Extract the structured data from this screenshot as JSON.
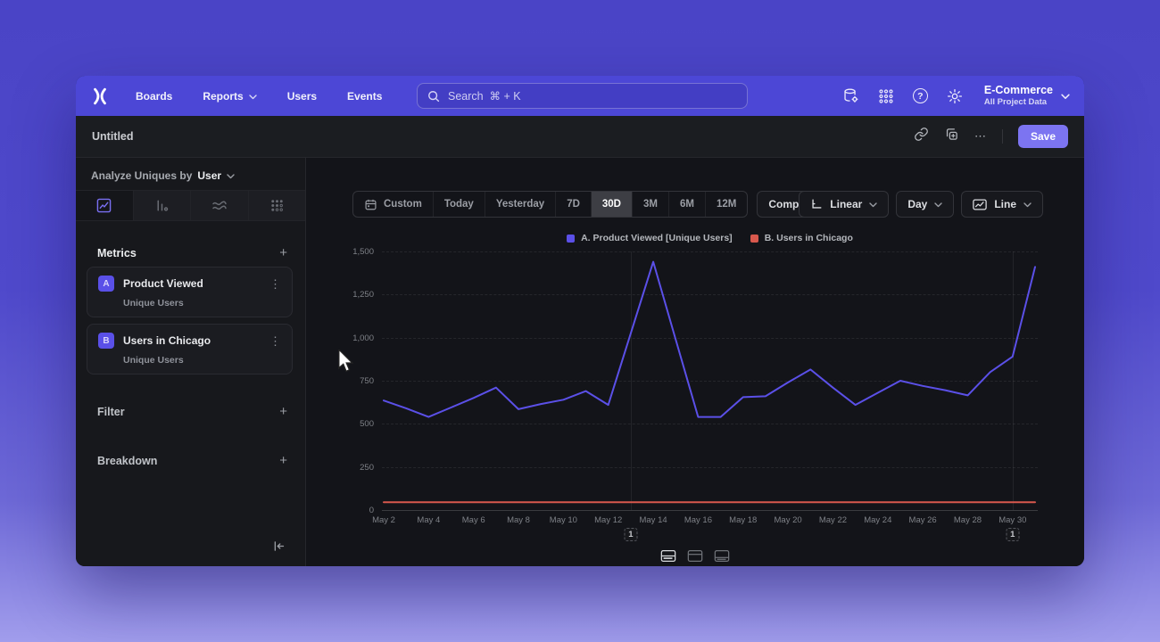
{
  "navbar": {
    "brand": "Mixpanel",
    "items": [
      {
        "label": "Boards",
        "chevron": false
      },
      {
        "label": "Reports",
        "chevron": true
      },
      {
        "label": "Users",
        "chevron": false
      },
      {
        "label": "Events",
        "chevron": false
      }
    ],
    "search_placeholder": "Search  ⌘ + K",
    "project_name": "E-Commerce",
    "project_subtitle": "All Project Data",
    "right_icons": [
      "data-management-icon",
      "apps-grid-icon",
      "help-icon",
      "settings-gear-icon"
    ]
  },
  "doc_header": {
    "title": "Untitled",
    "more_label": "⋯",
    "save_label": "Save"
  },
  "sidebar": {
    "analyze_prefix": "Analyze Uniques by",
    "analyze_value": "User",
    "chart_tabs": [
      "insights-line",
      "bar-chart",
      "flows",
      "retention"
    ],
    "selected_tab": "insights-line",
    "metrics_title": "Metrics",
    "metric_items": [
      {
        "letter": "A",
        "label": "Product Viewed",
        "sublabel": "Unique Users"
      },
      {
        "letter": "B",
        "label": "Users in Chicago",
        "sublabel": "Unique Users"
      }
    ],
    "filter_title": "Filter",
    "breakdown_title": "Breakdown"
  },
  "toolbar": {
    "date_ranges": [
      "Custom",
      "Today",
      "Yesterday",
      "7D",
      "30D",
      "3M",
      "6M",
      "12M"
    ],
    "selected_range": "30D",
    "compare_label": "Compare",
    "scale_label": "Linear",
    "interval_label": "Day",
    "chart_type_label": "Line"
  },
  "chart_data": {
    "type": "line",
    "x_unit": "day",
    "x": [
      "May 2",
      "May 3",
      "May 4",
      "May 5",
      "May 6",
      "May 7",
      "May 8",
      "May 9",
      "May 10",
      "May 11",
      "May 12",
      "May 13",
      "May 14",
      "May 15",
      "May 16",
      "May 17",
      "May 18",
      "May 19",
      "May 20",
      "May 21",
      "May 22",
      "May 23",
      "May 24",
      "May 25",
      "May 26",
      "May 27",
      "May 28",
      "May 29",
      "May 30",
      "May 31"
    ],
    "x_ticks": [
      {
        "day": 0,
        "label": "May 2"
      },
      {
        "day": 2,
        "label": "May 4"
      },
      {
        "day": 4,
        "label": "May 6"
      },
      {
        "day": 6,
        "label": "May 8"
      },
      {
        "day": 8,
        "label": "May 10"
      },
      {
        "day": 10,
        "label": "May 12"
      },
      {
        "day": 12,
        "label": "May 14"
      },
      {
        "day": 14,
        "label": "May 16"
      },
      {
        "day": 16,
        "label": "May 18"
      },
      {
        "day": 18,
        "label": "May 20"
      },
      {
        "day": 20,
        "label": "May 22"
      },
      {
        "day": 22,
        "label": "May 24"
      },
      {
        "day": 24,
        "label": "May 26"
      },
      {
        "day": 26,
        "label": "May 28"
      },
      {
        "day": 28,
        "label": "May 30"
      }
    ],
    "ylim": [
      0,
      1500
    ],
    "y_ticks": [
      {
        "value": 0,
        "label": "0"
      },
      {
        "value": 250,
        "label": "250"
      },
      {
        "value": 500,
        "label": "500"
      },
      {
        "value": 750,
        "label": "750"
      },
      {
        "value": 1000,
        "label": "1,000"
      },
      {
        "value": 1250,
        "label": "1,250"
      },
      {
        "value": 1500,
        "label": "1,500"
      }
    ],
    "grid": "horizontal-dashed",
    "legend_position": "top",
    "series": [
      {
        "name": "A. Product Viewed [Unique Users]",
        "color": "#5b50e8",
        "values": [
          635,
          590,
          540,
          595,
          650,
          710,
          585,
          615,
          640,
          690,
          610,
          1025,
          1440,
          990,
          540,
          540,
          655,
          660,
          740,
          815,
          710,
          610,
          680,
          750,
          720,
          695,
          665,
          800,
          890,
          1410
        ]
      },
      {
        "name": "B. Users in Chicago",
        "color": "#d8584d",
        "values": [
          45,
          45,
          45,
          45,
          45,
          45,
          45,
          45,
          45,
          45,
          45,
          45,
          45,
          45,
          45,
          45,
          45,
          45,
          45,
          45,
          45,
          45,
          45,
          45,
          45,
          45,
          45,
          45,
          45,
          45
        ]
      }
    ],
    "annotations": [
      {
        "label": "1",
        "day": 11
      },
      {
        "label": "1",
        "day": 28
      }
    ]
  },
  "footer": {
    "layout_options": [
      "split-view",
      "chart-view",
      "table-view"
    ],
    "selected_layout": "split-view"
  }
}
